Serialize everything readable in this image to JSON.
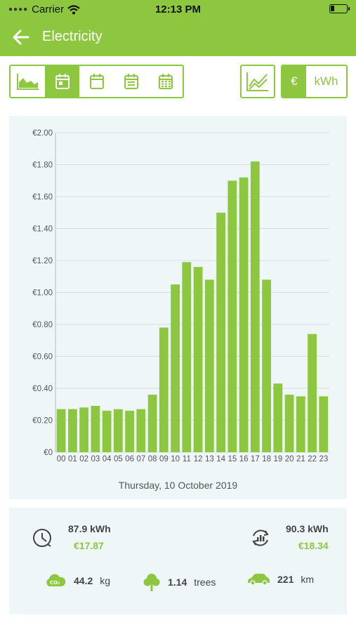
{
  "status_bar": {
    "carrier": "Carrier",
    "time": "12:13 PM"
  },
  "nav": {
    "title": "Electricity"
  },
  "toolbar": {
    "periods": [
      "chart-area",
      "day",
      "week",
      "month",
      "year"
    ],
    "active_period": 1,
    "units": {
      "euro": "€",
      "kwh": "kWh"
    }
  },
  "colors": {
    "accent": "#8dc63f",
    "panel": "#eef6f8"
  },
  "chart_data": {
    "type": "bar",
    "categories": [
      "00",
      "01",
      "02",
      "03",
      "04",
      "05",
      "06",
      "07",
      "08",
      "09",
      "10",
      "11",
      "12",
      "13",
      "14",
      "15",
      "16",
      "17",
      "18",
      "19",
      "20",
      "21",
      "22",
      "23"
    ],
    "values": [
      0.27,
      0.27,
      0.28,
      0.29,
      0.26,
      0.27,
      0.26,
      0.27,
      0.36,
      0.78,
      1.05,
      1.19,
      1.16,
      1.08,
      1.5,
      1.7,
      1.72,
      1.82,
      1.08,
      0.43,
      0.36,
      0.35,
      0.74,
      0.35
    ],
    "ylim": [
      0,
      2.0
    ],
    "yticks": [
      0,
      0.2,
      0.4,
      0.6,
      0.8,
      1.0,
      1.2,
      1.4,
      1.6,
      1.8,
      2.0
    ],
    "ytick_labels": [
      "€0",
      "€0.20",
      "€0.40",
      "€0.60",
      "€0.80",
      "€1.00",
      "€1.20",
      "€1.40",
      "€1.60",
      "€1.80",
      "€2.00"
    ],
    "xlabel": "Thursday, 10 October 2019",
    "grid": true
  },
  "summary": {
    "left": {
      "kwh": "87.9 kWh",
      "eur": "€17.87"
    },
    "right": {
      "kwh": "90.3 kWh",
      "eur": "€18.34"
    },
    "co2": {
      "value": "44.2",
      "unit": "kg"
    },
    "trees": {
      "value": "1.14",
      "unit": "trees"
    },
    "car": {
      "value": "221",
      "unit": "km"
    }
  }
}
